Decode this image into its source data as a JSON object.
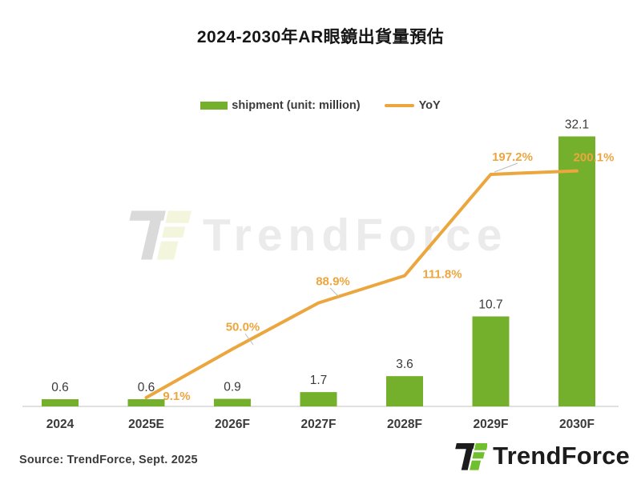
{
  "title": "2024-2030年AR眼鏡出貨量預估",
  "legend": {
    "shipment": "shipment (unit: million)",
    "yoy": "YoY"
  },
  "watermark": {
    "text": "TrendForce"
  },
  "source": "Source: TrendForce, Sept. 2025",
  "brand": {
    "name": "TrendForce"
  },
  "colors": {
    "bar_green": "#74b02c",
    "line_orange": "#eba63e",
    "yoy_label_orange": "#eda63f",
    "text_dark": "#3a3a3a",
    "axis_gray": "#d6d6d6",
    "leader_gray": "#bdbdbd",
    "watermark_gray": "#ebebeb",
    "logo_black": "#1c1c1c",
    "logo_green": "#6fbf2e"
  },
  "chart_data": {
    "type": "bar",
    "title": "2024-2030年AR眼鏡出貨量預估",
    "categories": [
      "2024",
      "2025E",
      "2026F",
      "2027F",
      "2028F",
      "2029F",
      "2030F"
    ],
    "series": [
      {
        "name": "shipment (unit: million)",
        "type": "bar",
        "axis": "left",
        "values": [
          0.6,
          0.6,
          0.9,
          1.7,
          3.6,
          10.7,
          32.1
        ],
        "labels": [
          "0.6",
          "0.6",
          "0.9",
          "1.7",
          "3.6",
          "10.7",
          "32.1"
        ]
      },
      {
        "name": "YoY",
        "type": "line",
        "axis": "right",
        "values": [
          null,
          9.1,
          50.0,
          88.9,
          111.8,
          197.2,
          200.1
        ],
        "labels": [
          "",
          "9.1%",
          "50.0%",
          "88.9%",
          "111.8%",
          "197.2%",
          "200.1%"
        ]
      }
    ],
    "ylim_left": [
      0,
      34
    ],
    "ylim_right": [
      0,
      210
    ],
    "grid": false,
    "legend_position": "top",
    "xlabel": "",
    "ylabel": ""
  }
}
